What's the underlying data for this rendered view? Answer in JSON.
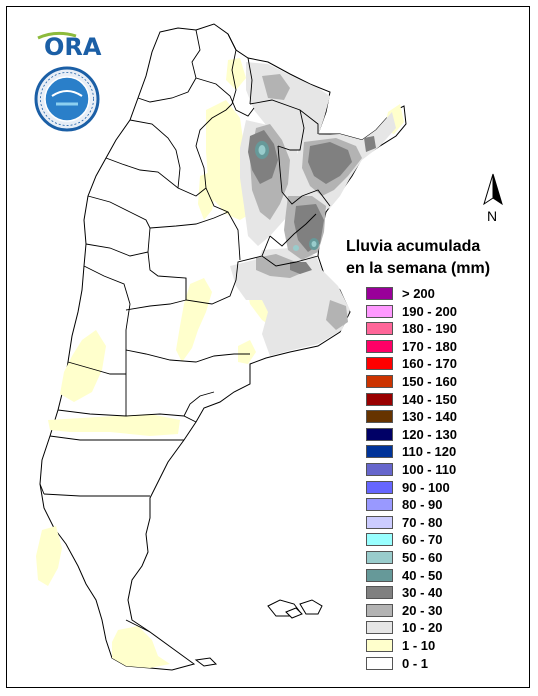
{
  "legend": {
    "title_line1": "Lluvia acumulada",
    "title_line2": "en la semana (mm)",
    "items": [
      {
        "label": "> 200",
        "color": "#990099"
      },
      {
        "label": "190 - 200",
        "color": "#ff99ff"
      },
      {
        "label": "180 - 190",
        "color": "#ff6699"
      },
      {
        "label": "170 - 180",
        "color": "#ff0066"
      },
      {
        "label": "160 - 170",
        "color": "#ff0000"
      },
      {
        "label": "150 - 160",
        "color": "#cc3300"
      },
      {
        "label": "140 - 150",
        "color": "#990000"
      },
      {
        "label": "130 - 140",
        "color": "#663300"
      },
      {
        "label": "120 - 130",
        "color": "#000066"
      },
      {
        "label": "110 - 120",
        "color": "#003399"
      },
      {
        "label": "100 - 110",
        "color": "#6666cc"
      },
      {
        "label": "90 - 100",
        "color": "#6666ff"
      },
      {
        "label": "80 - 90",
        "color": "#9999ff"
      },
      {
        "label": "70 - 80",
        "color": "#ccccff"
      },
      {
        "label": "60 - 70",
        "color": "#99ffff"
      },
      {
        "label": "50 - 60",
        "color": "#99cccc"
      },
      {
        "label": "40 - 50",
        "color": "#669999"
      },
      {
        "label": "30 - 40",
        "color": "#808080"
      },
      {
        "label": "20 - 30",
        "color": "#b3b3b3"
      },
      {
        "label": "10 - 20",
        "color": "#e6e6e6"
      },
      {
        "label": "1 - 10",
        "color": "#ffffcc"
      },
      {
        "label": "0 - 1",
        "color": "#ffffff"
      }
    ]
  },
  "north_label": "N",
  "logo_text": "ORA",
  "colors": {
    "rain_0_1": "#ffffff",
    "rain_1_10": "#ffffcc",
    "rain_10_20": "#e6e6e6",
    "rain_20_30": "#b3b3b3",
    "rain_30_40": "#808080",
    "rain_40_50": "#669999",
    "rain_50_60": "#99cccc",
    "border": "#000000",
    "ora_green": "#8dbb3c",
    "ora_blue": "#1b5fa6"
  }
}
